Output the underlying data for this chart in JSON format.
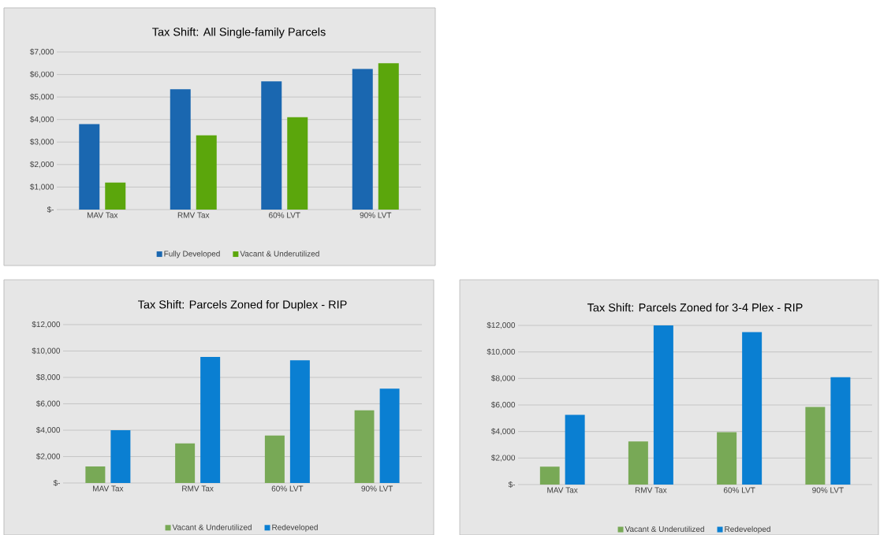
{
  "chart_data": [
    {
      "type": "bar",
      "title": "Tax Shift: All Single-family Parcels",
      "categories": [
        "MAV Tax",
        "RMV Tax",
        "60% LVT",
        "90% LVT"
      ],
      "series": [
        {
          "name": "Fully Developed",
          "color": "#1a67b0",
          "values": [
            3800,
            5350,
            5700,
            6250
          ]
        },
        {
          "name": "Vacant & Underutilized",
          "color": "#5ba60c",
          "values": [
            1200,
            3300,
            4100,
            6500
          ]
        }
      ],
      "ylim": [
        0,
        7000
      ],
      "yticks": [
        {
          "value": 0,
          "label": "$-"
        },
        {
          "value": 1000,
          "label": "$1,000"
        },
        {
          "value": 2000,
          "label": "$2,000"
        },
        {
          "value": 3000,
          "label": "$3,000"
        },
        {
          "value": 4000,
          "label": "$4,000"
        },
        {
          "value": 5000,
          "label": "$5,000"
        },
        {
          "value": 6000,
          "label": "$6,000"
        },
        {
          "value": 7000,
          "label": "$7,000"
        }
      ],
      "grid": "y",
      "legend": "bottom"
    },
    {
      "type": "bar",
      "title": "Tax Shift: Parcels Zoned for Duplex - RIP",
      "categories": [
        "MAV Tax",
        "RMV Tax",
        "60% LVT",
        "90% LVT"
      ],
      "series": [
        {
          "name": "Vacant & Underutilized",
          "color": "#78a956",
          "values": [
            1250,
            3000,
            3600,
            5500
          ]
        },
        {
          "name": "Redeveloped",
          "color": "#0a7fd2",
          "values": [
            4000,
            9550,
            9300,
            7150
          ]
        }
      ],
      "ylim": [
        0,
        12000
      ],
      "yticks": [
        {
          "value": 0,
          "label": "$-"
        },
        {
          "value": 2000,
          "label": "$2,000"
        },
        {
          "value": 4000,
          "label": "$4,000"
        },
        {
          "value": 6000,
          "label": "$6,000"
        },
        {
          "value": 8000,
          "label": "$8,000"
        },
        {
          "value": 10000,
          "label": "$10,000"
        },
        {
          "value": 12000,
          "label": "$12,000"
        }
      ],
      "grid": "y",
      "legend": "bottom"
    },
    {
      "type": "bar",
      "title": "Tax Shift: Parcels Zoned for 3-4 Plex - RIP",
      "categories": [
        "MAV Tax",
        "RMV Tax",
        "60% LVT",
        "90% LVT"
      ],
      "series": [
        {
          "name": "Vacant & Underutilized",
          "color": "#78a956",
          "values": [
            1350,
            3250,
            3950,
            5850
          ]
        },
        {
          "name": "Redeveloped",
          "color": "#0a7fd2",
          "values": [
            5250,
            12000,
            11500,
            8100
          ]
        }
      ],
      "ylim": [
        0,
        12000
      ],
      "yticks": [
        {
          "value": 0,
          "label": "$-"
        },
        {
          "value": 2000,
          "label": "$2,000"
        },
        {
          "value": 4000,
          "label": "$4,000"
        },
        {
          "value": 6000,
          "label": "$6,000"
        },
        {
          "value": 8000,
          "label": "$8,000"
        },
        {
          "value": 10000,
          "label": "$10,000"
        },
        {
          "value": 12000,
          "label": "$12,000"
        }
      ],
      "grid": "y",
      "legend": "bottom"
    }
  ]
}
